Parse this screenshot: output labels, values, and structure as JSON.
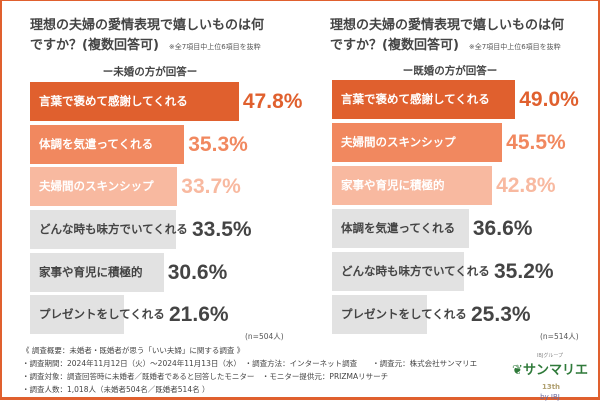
{
  "colors": {
    "rank1": "#e0602e",
    "rank2": "#f1885f",
    "rank3": "#f8b9a0",
    "other": "#e2e2e2",
    "frame": "#e0602e"
  },
  "chart_data": [
    {
      "type": "bar",
      "orientation": "horizontal",
      "title": "理想の夫婦の愛情表現で嬉しいものは何ですか？(複数回答可)",
      "note": "※全7項目中上位6項目を抜粋",
      "subtitle": "ー未婚の方が回答ー",
      "sample": "(n=504人)",
      "unit": "%",
      "categories": [
        "言葉で褒めて感謝してくれる",
        "体調を気遣ってくれる",
        "夫婦間のスキンシップ",
        "どんな時も味方でいてくれる",
        "家事や育児に積極的",
        "プレゼントをしてくれる"
      ],
      "values": [
        47.8,
        35.3,
        33.7,
        33.5,
        30.6,
        21.6
      ],
      "labels": [
        "47.8%",
        "35.3%",
        "33.7%",
        "33.5%",
        "30.6%",
        "21.6%"
      ]
    },
    {
      "type": "bar",
      "orientation": "horizontal",
      "title": "理想の夫婦の愛情表現で嬉しいものは何ですか？(複数回答可)",
      "note": "※全7項目中上位6項目を抜粋",
      "subtitle": "ー既婚の方が回答ー",
      "sample": "(n=514人)",
      "unit": "%",
      "categories": [
        "言葉で褒めて感謝してくれる",
        "夫婦間のスキンシップ",
        "家事や育児に積極的",
        "体調を気遣ってくれる",
        "どんな時も味方でいてくれる",
        "プレゼントをしてくれる"
      ],
      "values": [
        49.0,
        45.5,
        42.8,
        36.6,
        35.2,
        25.3
      ],
      "labels": [
        "49.0%",
        "45.5%",
        "42.8%",
        "36.6%",
        "35.2%",
        "25.3%"
      ]
    }
  ],
  "titles": {
    "line1": "理想の夫婦の愛情表現で嬉しいものは何",
    "line2": "ですか？(複数回答可)"
  },
  "footer": [
    "《 調査概要：未婚者・既婚者が思う「いい夫婦」に関する調査 》",
    "・調査期間：2024年11月12日（火）～2024年11月13日（水）　・調査方法：インターネット調査　　・調査元：株式会社サンマリエ",
    "・調査対象：調査回答時に未婚者／既婚者であると回答したモニター　・モニター提供元：PRIZMAリサーチ",
    "・調査人数：1,018人（未婚者504名／既婚者514名 ）"
  ],
  "logo": {
    "tagline": "IBJグループ",
    "name": "サンマリエ",
    "by": "by IBJ",
    "badge": "13th"
  }
}
